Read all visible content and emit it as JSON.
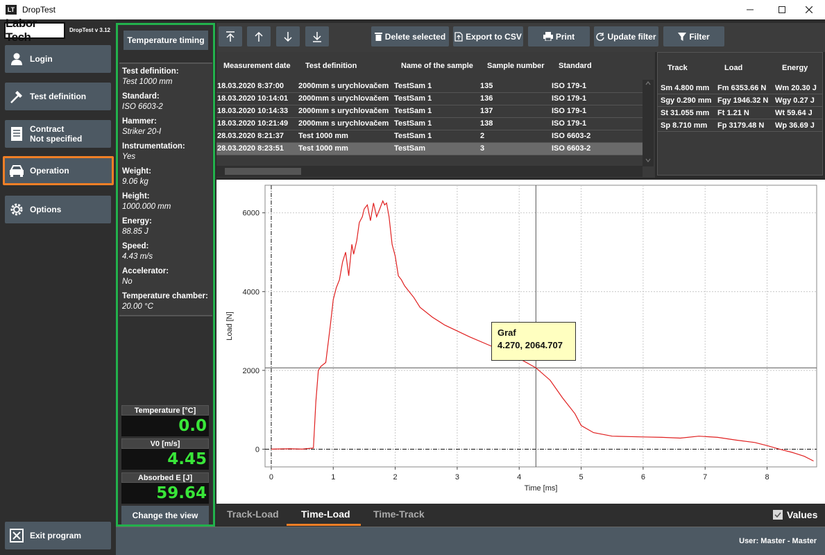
{
  "window": {
    "title": "DropTest",
    "app_icon": "LT"
  },
  "sidebar": {
    "logo": "Labor Tech",
    "version": "DropTest v 3.12",
    "items": [
      {
        "label": "Login",
        "icon": "user-icon"
      },
      {
        "label": "Test definition",
        "icon": "hammer-icon"
      },
      {
        "label_line1": "Contract",
        "label_line2": "Not specified",
        "icon": "document-icon"
      },
      {
        "label": "Operation",
        "icon": "car-icon"
      },
      {
        "label": "Options",
        "icon": "gear-icon"
      }
    ],
    "exit_label": "Exit program"
  },
  "info": {
    "temp_timing_label": "Temperature timing",
    "fields": [
      {
        "label": "Test definition:",
        "value": "Test 1000 mm"
      },
      {
        "label": "Standard:",
        "value": "ISO 6603-2"
      },
      {
        "label": "Hammer:",
        "value": "Striker 20-I"
      },
      {
        "label": "Instrumentation:",
        "value": "Yes"
      },
      {
        "label": "Weight:",
        "value": "9.06   kg"
      },
      {
        "label": "Height:",
        "value": "1000.000   mm"
      },
      {
        "label": "Energy:",
        "value": "88.85   J"
      },
      {
        "label": "Speed:",
        "value": "4.43   m/s"
      },
      {
        "label": "Accelerator:",
        "value": "No"
      },
      {
        "label": "Temperature chamber:",
        "value": "20.00 °C"
      }
    ],
    "gauges": [
      {
        "label": "Temperature [°C]",
        "value": "0.0"
      },
      {
        "label": "V0 [m/s]",
        "value": "4.45"
      },
      {
        "label": "Absorbed E [J]",
        "value": "59.64"
      }
    ],
    "change_view_label": "Change the view"
  },
  "toolbar": {
    "delete_label": "Delete selected",
    "export_label": "Export to CSV",
    "print_label": "Print",
    "update_filter_label": "Update filter",
    "filter_label": "Filter"
  },
  "table": {
    "headers": [
      "Measurement date",
      "Test definition",
      "Name of the sample",
      "Sample number",
      "Standard"
    ],
    "rows": [
      [
        "18.03.2020 8:37:00",
        "2000mm s urychlovačem",
        "TestSam 1",
        "135",
        "ISO 179-1"
      ],
      [
        "18.03.2020 10:14:01",
        "2000mm s urychlovačem",
        "TestSam 1",
        "136",
        "ISO 179-1"
      ],
      [
        "18.03.2020 10:14:33",
        "2000mm s urychlovačem",
        "TestSam 1",
        "137",
        "ISO 179-1"
      ],
      [
        "18.03.2020 10:21:49",
        "2000mm s urychlovačem",
        "TestSam 1",
        "138",
        "ISO 179-1"
      ],
      [
        "28.03.2020 8:21:37",
        "Test 1000 mm",
        "TestSam 1",
        "2",
        "ISO 6603-2"
      ],
      [
        "28.03.2020 8:23:51",
        "Test 1000 mm",
        "TestSam",
        "3",
        "ISO 6603-2"
      ]
    ],
    "selected_row": 5
  },
  "results": {
    "headers": [
      "Track",
      "Load",
      "Energy"
    ],
    "rows": [
      [
        "Sm 4.800 mm",
        "Fm 6353.66 N",
        "Wm 20.30 J"
      ],
      [
        "Sgy 0.290 mm",
        "Fgy 1946.32 N",
        "Wgy 0.27 J"
      ],
      [
        "St 31.055 mm",
        "Ft 1.21 N",
        "Wt 59.64 J"
      ],
      [
        "Sp 8.710 mm",
        "Fp 3179.48 N",
        "Wp 36.69 J"
      ]
    ]
  },
  "chart_data": {
    "type": "line",
    "xlabel": "Time [ms]",
    "ylabel": "Load [N]",
    "xlim": [
      -0.1,
      8.8
    ],
    "ylim": [
      -450,
      6700
    ],
    "xticks": [
      0,
      1,
      2,
      3,
      4,
      5,
      6,
      7,
      8
    ],
    "yticks": [
      0,
      2000,
      4000,
      6000
    ],
    "grid": true,
    "line_color": "#e02020",
    "series": [
      {
        "x": [
          0,
          0.3,
          0.5,
          0.68,
          0.72,
          0.76,
          0.8,
          0.88,
          0.95,
          1.0,
          1.05,
          1.1,
          1.15,
          1.2,
          1.25,
          1.3,
          1.33,
          1.38,
          1.42,
          1.47,
          1.5,
          1.55,
          1.6,
          1.65,
          1.7,
          1.75,
          1.8,
          1.83,
          1.86,
          1.9,
          1.95,
          2.0,
          2.05,
          2.1,
          2.15,
          2.2,
          2.3,
          2.4,
          2.6,
          2.8,
          3.0,
          3.2,
          3.5,
          3.8,
          4.0,
          4.27,
          4.5,
          4.7,
          4.9,
          5.0,
          5.2,
          5.5,
          6.0,
          6.3,
          6.6,
          6.9,
          7.2,
          7.5,
          7.8,
          8.0,
          8.2,
          8.4,
          8.6,
          8.75
        ],
        "y": [
          0,
          10,
          0,
          30,
          1200,
          2000,
          2100,
          2200,
          3100,
          3800,
          4100,
          4300,
          4750,
          5000,
          4400,
          5200,
          4950,
          5300,
          5750,
          5900,
          6100,
          6200,
          5800,
          6250,
          5900,
          6100,
          6300,
          6200,
          6250,
          5900,
          5200,
          4900,
          4400,
          4300,
          4150,
          4050,
          3850,
          3600,
          3350,
          3150,
          3000,
          2850,
          2650,
          2450,
          2300,
          2064.707,
          1750,
          1300,
          900,
          600,
          420,
          330,
          310,
          300,
          280,
          330,
          300,
          230,
          170,
          90,
          0,
          -80,
          -180,
          -300
        ]
      }
    ],
    "tooltip": {
      "title": "Graf",
      "value": "4.270, 2064.707",
      "x": 4.27,
      "y": 2064.707
    }
  },
  "tabs": [
    "Track-Load",
    "Time-Load",
    "Time-Track"
  ],
  "active_tab": 1,
  "values_label": "Values",
  "status": {
    "user_text": "User:  Master  -  Master"
  }
}
